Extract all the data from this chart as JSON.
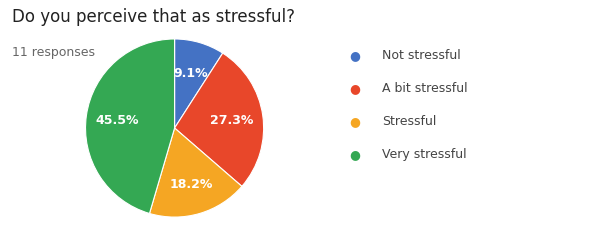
{
  "title": "Do you perceive that as stressful?",
  "subtitle": "11 responses",
  "labels": [
    "Not stressful",
    "A bit stressful",
    "Stressful",
    "Very stressful"
  ],
  "values": [
    9.1,
    27.3,
    18.2,
    45.5
  ],
  "colors": [
    "#4472c4",
    "#e8472a",
    "#f5a623",
    "#34a853"
  ],
  "pct_labels": [
    "9.1%",
    "27.3%",
    "18.2%",
    "45.5%"
  ],
  "legend_colors": [
    "#4472c4",
    "#e8472a",
    "#f5a623",
    "#34a853"
  ],
  "start_angle": 90,
  "title_fontsize": 12,
  "subtitle_fontsize": 9,
  "legend_fontsize": 9,
  "pct_fontsize": 9,
  "background_color": "#ffffff"
}
